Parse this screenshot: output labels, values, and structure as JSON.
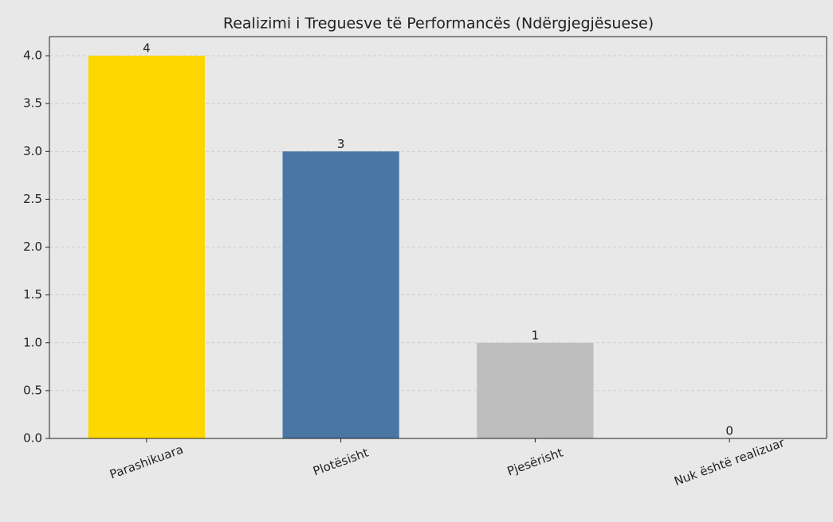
{
  "chart_data": {
    "type": "bar",
    "title": "Realizimi i Treguesve të Performancës (Ndërgjegjësuese)",
    "categories": [
      "Parashikuara",
      "Plotësisht",
      "Pjesërisht",
      "Nuk është realizuar"
    ],
    "values": [
      4,
      3,
      1,
      0
    ],
    "colors": [
      "#ffd700",
      "#4a76a6",
      "#bebebe",
      "#e74c3c"
    ],
    "ylim": [
      0,
      4.2
    ],
    "yticks": [
      {
        "value": 0,
        "label": "0.0"
      },
      0.5,
      {
        "value": 1,
        "label": "1.0"
      },
      1.5,
      {
        "value": 2,
        "label": "2.0"
      },
      2.5,
      {
        "value": 3,
        "label": "3.0"
      },
      3.5,
      {
        "value": 4,
        "label": "4.0"
      }
    ],
    "grid": true
  }
}
